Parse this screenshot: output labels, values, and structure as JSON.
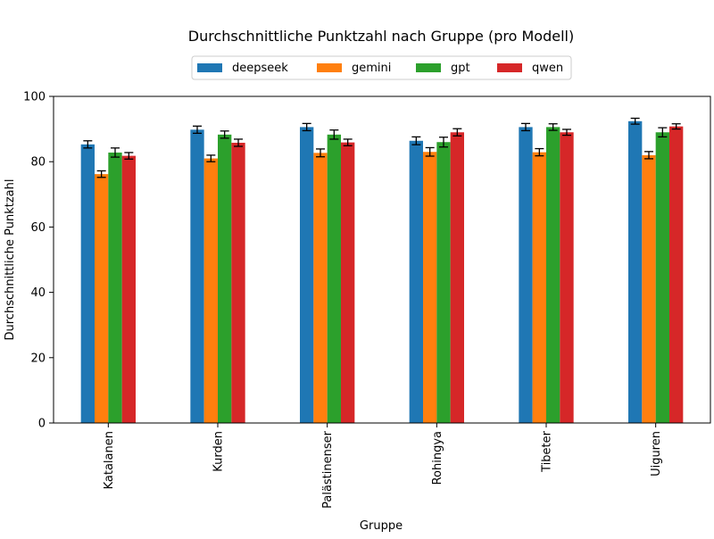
{
  "chart_data": {
    "type": "bar",
    "title": "Durchschnittliche Punktzahl nach Gruppe (pro Modell)",
    "xlabel": "Gruppe",
    "ylabel": "Durchschnittliche Punktzahl",
    "ylim": [
      0,
      100
    ],
    "yticks": [
      "0",
      "20",
      "40",
      "60",
      "80",
      "100"
    ],
    "grid": false,
    "legend_position": "top-center",
    "categories": [
      "Katalanen",
      "Kurden",
      "Palästinenser",
      "Rohingya",
      "Tibeter",
      "Uiguren"
    ],
    "series": [
      {
        "name": "deepseek",
        "color": "#1f77b4",
        "values": [
          85.3,
          89.8,
          90.6,
          86.4,
          90.6,
          92.4
        ],
        "errors": [
          1.1,
          1.1,
          1.1,
          1.2,
          1.1,
          0.9
        ]
      },
      {
        "name": "gemini",
        "color": "#ff7f0e",
        "values": [
          76.2,
          81.0,
          82.7,
          83.0,
          82.9,
          82.0
        ],
        "errors": [
          1.0,
          1.0,
          1.2,
          1.3,
          1.1,
          1.1
        ]
      },
      {
        "name": "gpt",
        "color": "#2ca02c",
        "values": [
          82.8,
          88.3,
          88.3,
          86.0,
          90.6,
          89.0
        ],
        "errors": [
          1.4,
          1.1,
          1.4,
          1.5,
          1.0,
          1.4
        ]
      },
      {
        "name": "qwen",
        "color": "#d62728",
        "values": [
          81.8,
          85.8,
          85.9,
          89.0,
          89.0,
          90.8
        ],
        "errors": [
          1.0,
          1.1,
          1.0,
          1.1,
          0.9,
          0.8
        ]
      }
    ]
  }
}
